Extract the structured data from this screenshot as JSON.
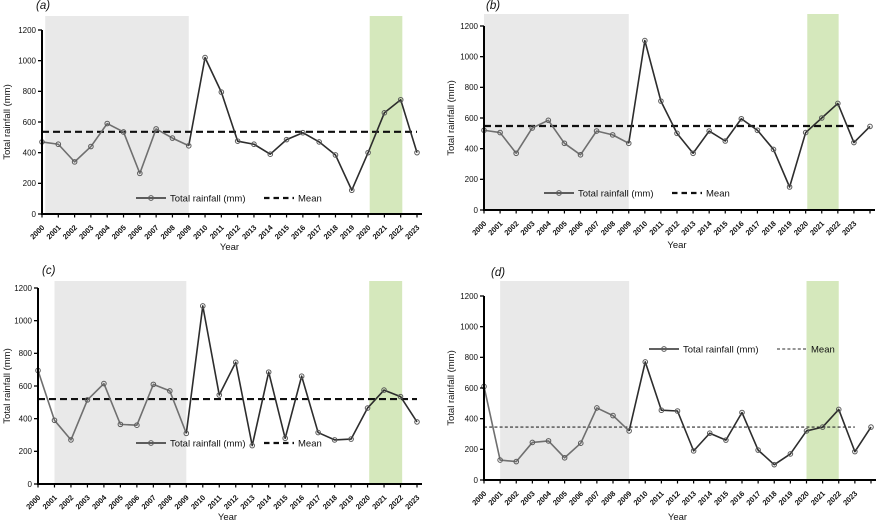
{
  "figure": {
    "xlabel": "Year",
    "ylabel": "Total rainfall (mm)",
    "legend": {
      "series_label": "Total rainfall (mm)",
      "mean_label": "Mean"
    },
    "ylim": [
      0,
      1200
    ],
    "yticks": [
      0,
      200,
      400,
      600,
      800,
      1000,
      1200
    ],
    "colors": {
      "gray_band": "#e9e9e9",
      "green_band": "#d5e8bc",
      "line_early": "#6f6f6f",
      "line_late": "#2d2d2d",
      "marker_stroke": "#5a5a5a",
      "mean_line": "#0f0f0f",
      "mean_line_thin": "#2b2b2b",
      "axis": "#000000"
    }
  },
  "chart_data": [
    {
      "panel": "(a)",
      "type": "line",
      "title": "",
      "xlabel": "Year",
      "ylabel": "Total rainfall (mm)",
      "ylim": [
        0,
        1200
      ],
      "grid": false,
      "legend_position": "inside-bottom-center",
      "years": [
        2000,
        2001,
        2002,
        2003,
        2004,
        2005,
        2006,
        2007,
        2008,
        2009,
        2010,
        2011,
        2012,
        2013,
        2014,
        2015,
        2016,
        2017,
        2018,
        2019,
        2020,
        2021,
        2022,
        2023
      ],
      "series": [
        {
          "name": "Total rainfall (mm)",
          "values": [
            470,
            455,
            340,
            440,
            590,
            535,
            265,
            555,
            495,
            445,
            1020,
            795,
            475,
            455,
            390,
            485,
            530,
            470,
            385,
            155,
            400,
            660,
            745,
            400
          ]
        }
      ],
      "mean": 536,
      "gray_band_years": [
        2000.2,
        2009.0
      ],
      "green_band_years": [
        2020.1,
        2022.1
      ],
      "x_axis_end": 2023,
      "has_unlabeled_final_point": false
    },
    {
      "panel": "(b)",
      "type": "line",
      "title": "",
      "xlabel": "Year",
      "ylabel": "Total rainfall (mm)",
      "ylim": [
        0,
        1200
      ],
      "grid": false,
      "legend_position": "inside-bottom-center",
      "years": [
        2000,
        2001,
        2002,
        2003,
        2004,
        2005,
        2006,
        2007,
        2008,
        2009,
        2010,
        2011,
        2012,
        2013,
        2014,
        2015,
        2016,
        2017,
        2018,
        2019,
        2020,
        2021,
        2022,
        2023
      ],
      "series": [
        {
          "name": "Total rainfall (mm)",
          "values": [
            520,
            505,
            370,
            535,
            585,
            435,
            360,
            515,
            490,
            435,
            1105,
            710,
            500,
            370,
            515,
            450,
            595,
            520,
            395,
            150,
            505,
            600,
            695,
            440,
            545
          ]
        }
      ],
      "mean": 548,
      "gray_band_years": [
        2000.0,
        2009.0
      ],
      "green_band_years": [
        2020.1,
        2022.05
      ],
      "x_axis_end": 2024,
      "has_unlabeled_final_point": true
    },
    {
      "panel": "(c)",
      "type": "line",
      "title": "",
      "xlabel": "Year",
      "ylabel": "Total rainfall (mm)",
      "ylim": [
        0,
        1200
      ],
      "grid": false,
      "legend_position": "inside-bottom-center",
      "years": [
        2000,
        2001,
        2002,
        2003,
        2004,
        2005,
        2006,
        2007,
        2008,
        2009,
        2010,
        2011,
        2012,
        2013,
        2014,
        2015,
        2016,
        2017,
        2018,
        2019,
        2020,
        2021,
        2022,
        2023
      ],
      "series": [
        {
          "name": "Total rainfall (mm)",
          "values": [
            695,
            390,
            270,
            515,
            615,
            365,
            360,
            610,
            570,
            310,
            1090,
            545,
            745,
            235,
            685,
            280,
            660,
            315,
            270,
            275,
            465,
            575,
            535,
            380
          ]
        }
      ],
      "mean": 520,
      "gray_band_years": [
        2001.0,
        2009.0
      ],
      "green_band_years": [
        2020.1,
        2022.1
      ],
      "x_axis_end": 2023,
      "has_unlabeled_final_point": false
    },
    {
      "panel": "(d)",
      "type": "line",
      "title": "",
      "xlabel": "Year",
      "ylabel": "Total rainfall (mm)",
      "ylim": [
        0,
        1200
      ],
      "grid": false,
      "legend_position": "inside-top-middle",
      "years": [
        2000,
        2001,
        2002,
        2003,
        2004,
        2005,
        2006,
        2007,
        2008,
        2009,
        2010,
        2011,
        2012,
        2013,
        2014,
        2015,
        2016,
        2017,
        2018,
        2019,
        2020,
        2021,
        2022,
        2023
      ],
      "series": [
        {
          "name": "Total rainfall (mm)",
          "values": [
            610,
            130,
            120,
            245,
            255,
            145,
            240,
            470,
            420,
            320,
            770,
            455,
            450,
            190,
            305,
            260,
            440,
            195,
            100,
            170,
            320,
            345,
            460,
            185,
            345
          ]
        }
      ],
      "mean": 345,
      "gray_band_years": [
        2001.0,
        2009.0
      ],
      "green_band_years": [
        2020.0,
        2022.0
      ],
      "x_axis_end": 2024,
      "has_unlabeled_final_point": true
    }
  ]
}
